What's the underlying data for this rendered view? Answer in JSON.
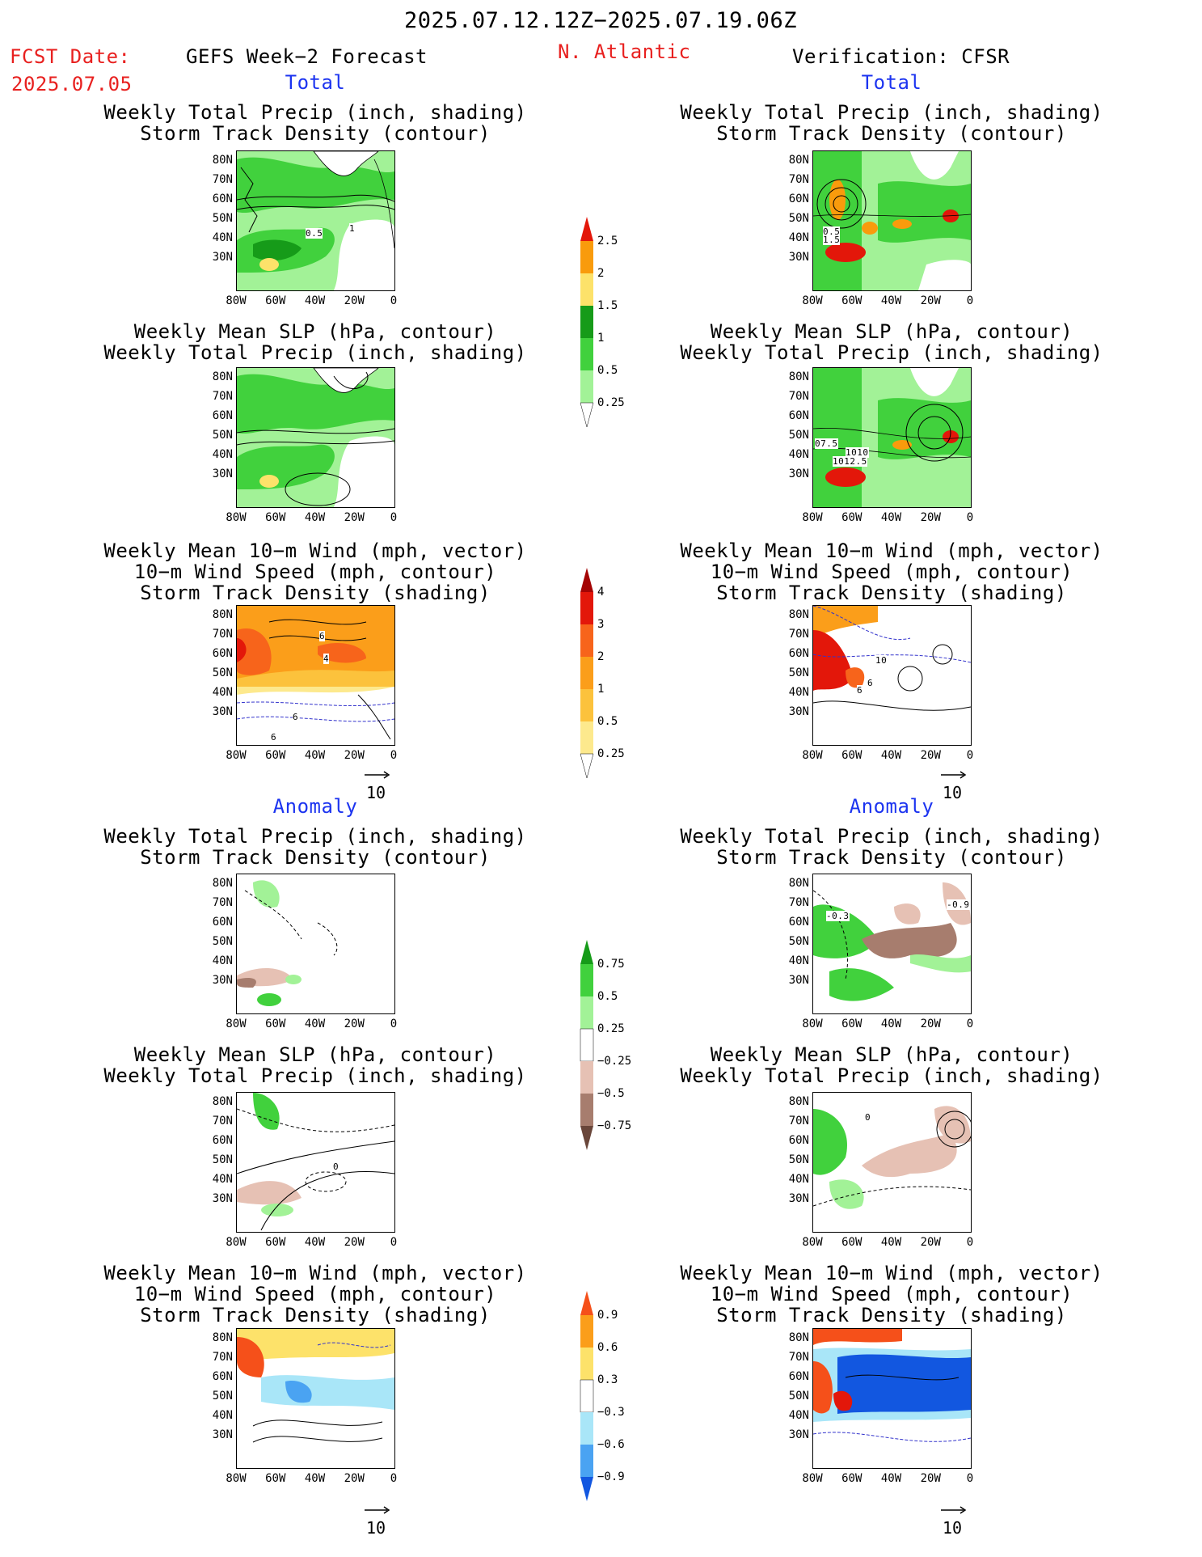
{
  "header": {
    "period": "2025.07.12.12Z−2025.07.19.06Z",
    "fcst_label": "FCST Date:",
    "fcst_date": "2025.07.05",
    "left_title": "GEFS Week−2 Forecast",
    "region": "N. Atlantic",
    "right_title": "Verification: CFSR"
  },
  "sections": {
    "total": "Total",
    "anomaly": "Anomaly"
  },
  "panel_titles": {
    "precip_track": "Weekly Total Precip (inch, shading)\nStorm Track Density (contour)",
    "slp_precip": "Weekly Mean SLP (hPa, contour)\nWeekly Total Precip (inch, shading)",
    "wind_track": "Weekly Mean 10−m Wind (mph, vector)\n10−m Wind Speed (mph, contour)\nStorm Track Density (shading)"
  },
  "axes": {
    "lat_ticks": [
      "80N",
      "70N",
      "60N",
      "50N",
      "40N",
      "30N"
    ],
    "lon_ticks": [
      "80W",
      "60W",
      "40W",
      "20W",
      "0"
    ]
  },
  "vector_ref": "10",
  "contour_labels": {
    "total_fc_precip": [
      "0.5",
      "1"
    ],
    "total_vf_precip": [
      "0.5",
      "1.5"
    ],
    "total_vf_slp": [
      "07.5",
      "1010",
      "1012.5"
    ],
    "total_fc_wind": [
      "6",
      "4",
      "6",
      "6"
    ],
    "total_vf_wind": [
      "10",
      "6",
      "6"
    ],
    "anom_vf_precip": [
      "-0.3",
      "-0.9"
    ],
    "anom_fc_slp": [
      "0"
    ],
    "anom_vf_slp": [
      "0"
    ]
  },
  "colorbars": {
    "precip_total": {
      "labels": [
        "2.5",
        "2",
        "1.5",
        "1",
        "0.5",
        "0.25"
      ],
      "colors": [
        "#e3170a",
        "#f99b0c",
        "#fde26a",
        "#169b19",
        "#41d13d",
        "#a2f297",
        "#ffffff"
      ]
    },
    "track_total": {
      "labels": [
        "4",
        "3",
        "2",
        "1",
        "0.5",
        "0.25"
      ],
      "colors": [
        "#a40404",
        "#e3170a",
        "#f7641b",
        "#fb9e1a",
        "#fcc23c",
        "#fde98d",
        "#ffffff"
      ]
    },
    "precip_anom": {
      "labels": [
        "0.75",
        "0.5",
        "0.25",
        "−0.25",
        "−0.5",
        "−0.75"
      ],
      "colors": [
        "#169b19",
        "#41d13d",
        "#a2f297",
        "#ffffff",
        "#e6c1b4",
        "#a77d6e",
        "#69463a"
      ]
    },
    "track_anom": {
      "labels": [
        "0.9",
        "0.6",
        "0.3",
        "−0.3",
        "−0.6",
        "−0.9"
      ],
      "colors": [
        "#f5501a",
        "#fb9e1a",
        "#fde26a",
        "#ffffff",
        "#a9e6f8",
        "#4aa3f2",
        "#1257e0"
      ]
    }
  }
}
